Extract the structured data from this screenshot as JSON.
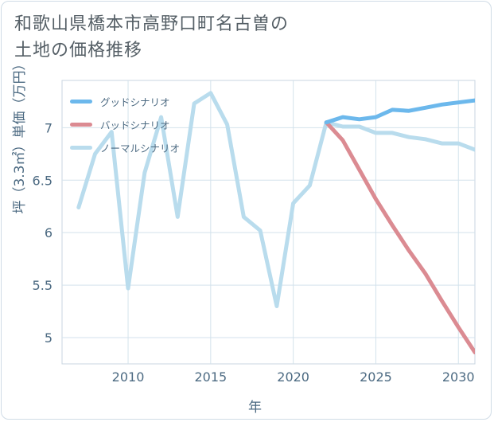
{
  "title_lines": [
    "和歌山県橋本市高野口町名古曽の",
    "土地の価格推移"
  ],
  "chart_data": {
    "type": "line",
    "xlabel": "年",
    "ylabel": "坪（3.3㎡）単価（万円）",
    "x_ticks": [
      2010,
      2015,
      2020,
      2025,
      2030
    ],
    "y_ticks": [
      "5",
      "5.5",
      "6",
      "6.5",
      "7"
    ],
    "xlim": [
      2006,
      2031
    ],
    "ylim": [
      4.75,
      7.45
    ],
    "grid": true,
    "legend_placement": "top-left",
    "series": [
      {
        "name": "グッドシナリオ",
        "color": "#6cb8ec",
        "x": [
          2022,
          2023,
          2024,
          2025,
          2026,
          2027,
          2028,
          2029,
          2030,
          2031
        ],
        "y": [
          7.05,
          7.1,
          7.08,
          7.1,
          7.17,
          7.16,
          7.19,
          7.22,
          7.24,
          7.26
        ]
      },
      {
        "name": "バッドシナリオ",
        "color": "#db8b92",
        "x": [
          2022,
          2023,
          2024,
          2025,
          2026,
          2027,
          2028,
          2029,
          2030,
          2031
        ],
        "y": [
          7.05,
          6.88,
          6.6,
          6.32,
          6.07,
          5.83,
          5.61,
          5.35,
          5.1,
          4.86
        ]
      },
      {
        "name": "ノーマルシナリオ",
        "color": "#b9dced",
        "x": [
          2007,
          2008,
          2009,
          2010,
          2011,
          2012,
          2013,
          2014,
          2015,
          2016,
          2017,
          2018,
          2019,
          2020,
          2021,
          2022,
          2023,
          2024,
          2025,
          2026,
          2027,
          2028,
          2029,
          2030,
          2031
        ],
        "y": [
          6.24,
          6.75,
          6.96,
          5.47,
          6.57,
          7.1,
          6.15,
          7.23,
          7.33,
          7.03,
          6.15,
          6.02,
          5.3,
          6.28,
          6.45,
          7.05,
          7.01,
          7.01,
          6.95,
          6.95,
          6.91,
          6.89,
          6.85,
          6.85,
          6.79
        ]
      }
    ]
  }
}
